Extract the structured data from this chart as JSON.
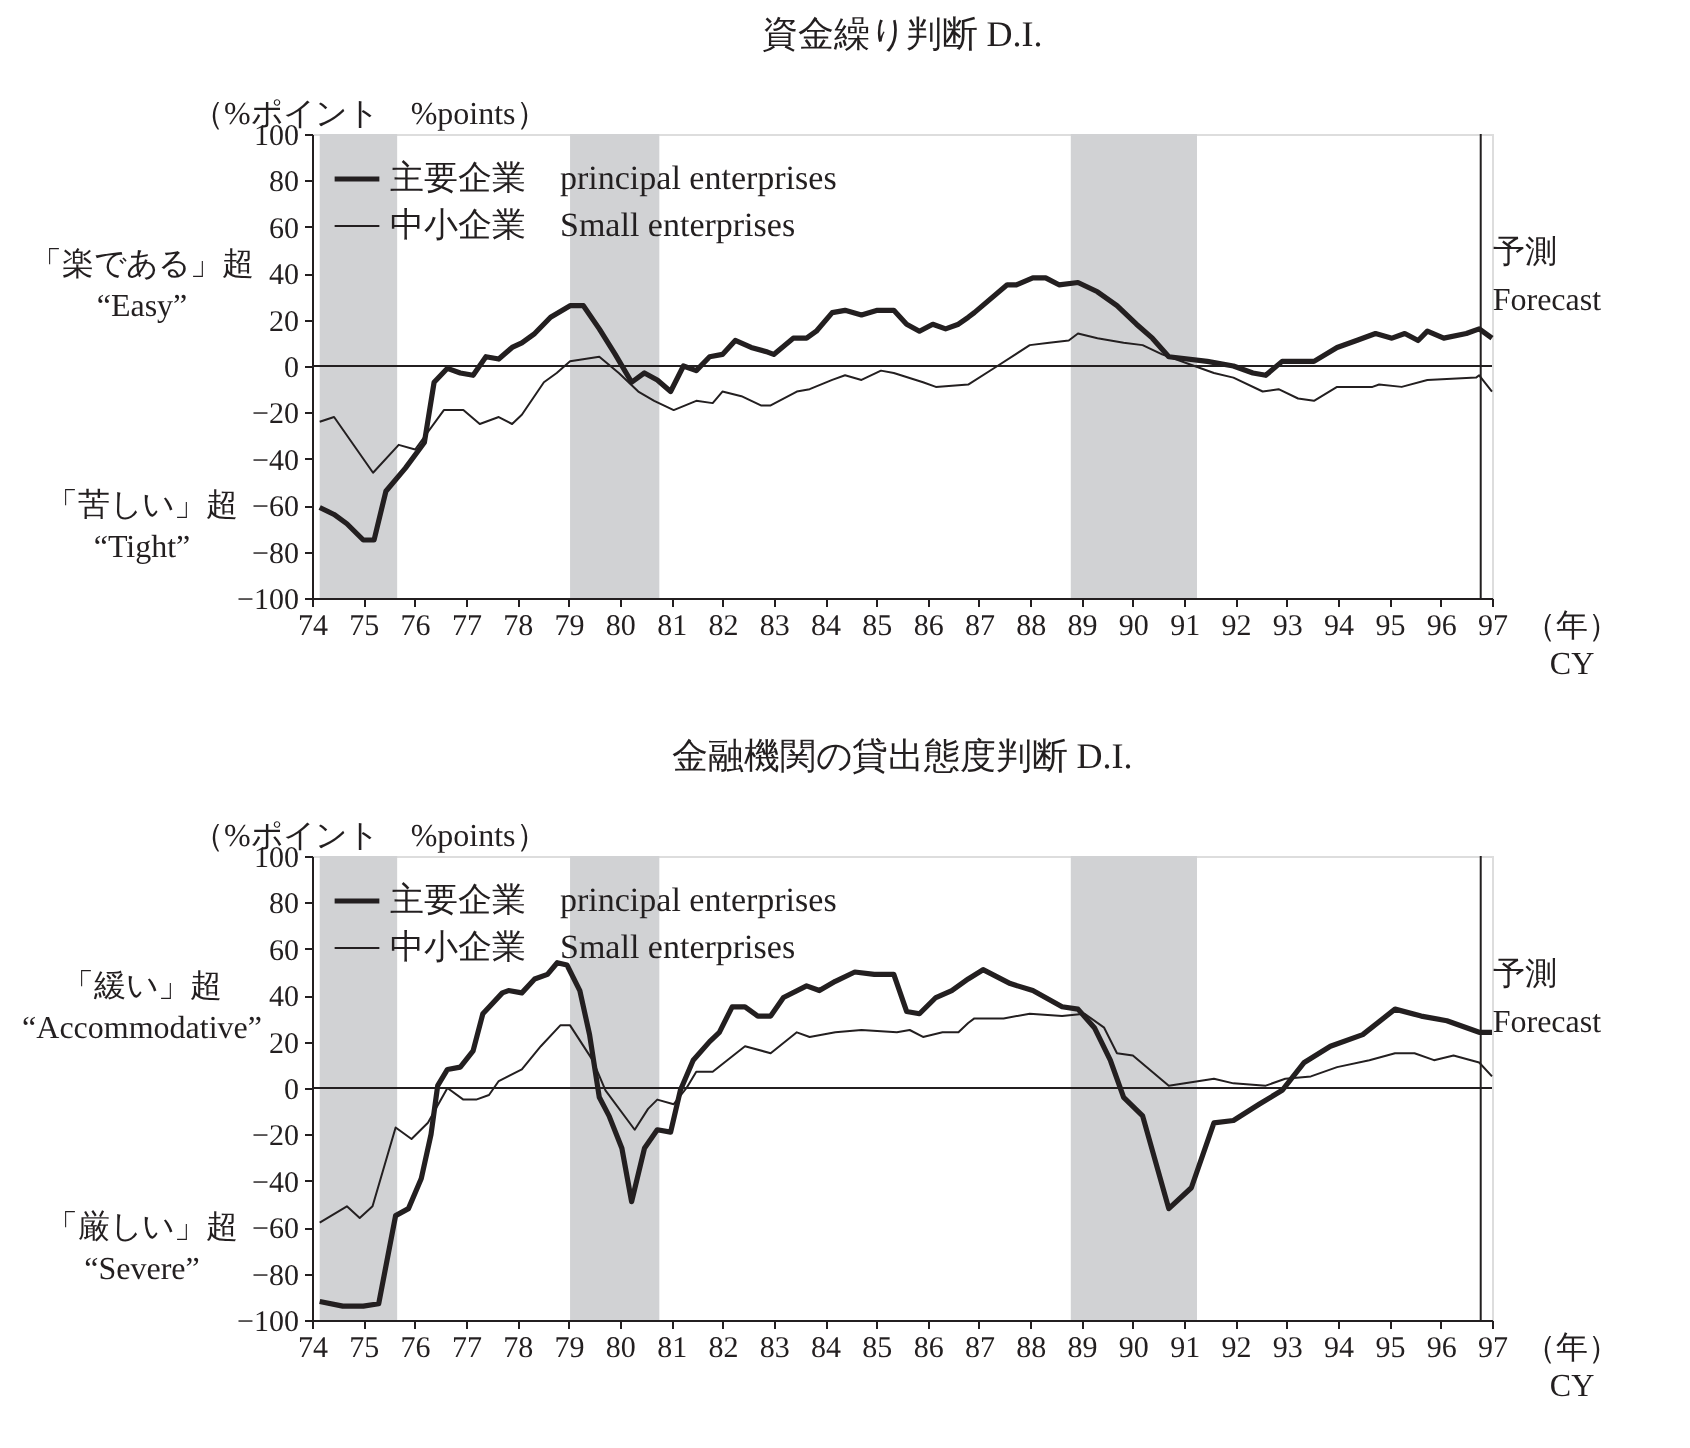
{
  "chart_data": [
    {
      "type": "line",
      "title": "資金繰り判断 D.I.",
      "ylabel": "（%ポイント　%points）",
      "xlabel": "（年） CY",
      "annotations": [
        "「楽である」超",
        "“Easy”",
        "「苦しい」超",
        "“Tight”"
      ],
      "xlim": [
        1974,
        1997
      ],
      "xticks": [
        {
          "value": 1974,
          "label": "74"
        },
        {
          "value": 1975,
          "label": "75"
        },
        {
          "value": 1976,
          "label": "76"
        },
        {
          "value": 1977,
          "label": "77"
        },
        {
          "value": 1978,
          "label": "78"
        },
        {
          "value": 1979,
          "label": "79"
        },
        {
          "value": 1980,
          "label": "80"
        },
        {
          "value": 1981,
          "label": "81"
        },
        {
          "value": 1982,
          "label": "82"
        },
        {
          "value": 1983,
          "label": "83"
        },
        {
          "value": 1984,
          "label": "84"
        },
        {
          "value": 1985,
          "label": "85"
        },
        {
          "value": 1986,
          "label": "86"
        },
        {
          "value": 1987,
          "label": "87"
        },
        {
          "value": 1988,
          "label": "88"
        },
        {
          "value": 1989,
          "label": "89"
        },
        {
          "value": 1990,
          "label": "90"
        },
        {
          "value": 1991,
          "label": "91"
        },
        {
          "value": 1992,
          "label": "92"
        },
        {
          "value": 1993,
          "label": "93"
        },
        {
          "value": 1994,
          "label": "94"
        },
        {
          "value": 1995,
          "label": "95"
        },
        {
          "value": 1996,
          "label": "96"
        },
        {
          "value": 1997,
          "label": "97"
        }
      ],
      "ylim": [
        -100,
        100
      ],
      "yticks": [
        -100,
        -80,
        -60,
        -40,
        -20,
        0,
        20,
        40,
        60,
        80,
        100
      ],
      "grid": false,
      "legend": "top left",
      "marker": "none",
      "line_style": "solid",
      "bands": [
        {
          "axis": "x",
          "from": 1974.15,
          "to": 1975.66,
          "color": "#d1d2d4"
        },
        {
          "axis": "x",
          "from": 1979.03,
          "to": 1980.77,
          "color": "#d1d2d4"
        },
        {
          "axis": "x",
          "from": 1988.79,
          "to": 1991.25,
          "color": "#d1d2d4"
        }
      ],
      "ref_lines": [
        {
          "axis": "y",
          "value": 0,
          "color": "#231f20"
        },
        {
          "axis": "x",
          "value": 1996.78,
          "label": "予測 Forecast",
          "color": "#231f20"
        }
      ],
      "series": [
        {
          "name": "主要企業　principal enterprises",
          "color": "#231f20",
          "x": [
            1974.15,
            1974.43,
            1974.68,
            1975.0,
            1975.21,
            1975.44,
            1975.82,
            1976.19,
            1976.38,
            1976.64,
            1976.89,
            1977.14,
            1977.39,
            1977.64,
            1977.9,
            1978.09,
            1978.34,
            1978.65,
            1979.03,
            1979.29,
            1979.6,
            1979.91,
            1980.23,
            1980.48,
            1980.73,
            1980.99,
            1981.24,
            1981.49,
            1981.75,
            1982.0,
            1982.25,
            1982.56,
            1982.88,
            1983.0,
            1983.38,
            1983.64,
            1983.83,
            1984.14,
            1984.39,
            1984.71,
            1985.02,
            1985.34,
            1985.59,
            1985.84,
            1986.1,
            1986.35,
            1986.6,
            1986.79,
            1986.91,
            1987.55,
            1987.73,
            1988.05,
            1988.3,
            1988.56,
            1988.93,
            1989.31,
            1989.69,
            1990.07,
            1990.38,
            1990.7,
            1991.45,
            1991.96,
            1992.34,
            1992.59,
            1992.91,
            1993.53,
            1993.98,
            1994.36,
            1994.73,
            1995.05,
            1995.3,
            1995.56,
            1995.74,
            1996.06,
            1996.5,
            1996.75,
            1997.0
          ],
          "values": [
            -61,
            -64,
            -68,
            -75,
            -75,
            -54,
            -44,
            -33,
            -7,
            -1,
            -3,
            -4,
            4,
            3,
            8,
            10,
            14,
            21,
            26,
            26,
            16,
            5,
            -7,
            -3,
            -6,
            -11,
            0,
            -2,
            4,
            5,
            11,
            8,
            6,
            5,
            12,
            12,
            15,
            23,
            24,
            22,
            24,
            24,
            18,
            15,
            18,
            16,
            18,
            21,
            23,
            35,
            35,
            38,
            38,
            35,
            36,
            32,
            26,
            18,
            12,
            4,
            2,
            0,
            -3,
            -4,
            2,
            2,
            8,
            11,
            14,
            12,
            14,
            11,
            15,
            12,
            14,
            16,
            12
          ]
        },
        {
          "name": "中小企業　Small enterprises",
          "color": "#231f20",
          "x": [
            1974.15,
            1974.43,
            1975.19,
            1975.69,
            1976.01,
            1976.57,
            1976.95,
            1977.27,
            1977.64,
            1977.9,
            1978.09,
            1978.52,
            1978.77,
            1979.03,
            1979.6,
            1979.98,
            1980.36,
            1980.67,
            1981.05,
            1981.49,
            1981.81,
            1982.0,
            1982.37,
            1982.75,
            1982.94,
            1983.45,
            1983.7,
            1984.14,
            1984.39,
            1984.71,
            1985.09,
            1985.34,
            1985.91,
            1986.16,
            1986.79,
            1987.36,
            1987.99,
            1988.37,
            1988.75,
            1988.93,
            1989.31,
            1989.82,
            1990.19,
            1990.57,
            1991.2,
            1991.58,
            1991.96,
            1992.53,
            1992.84,
            1993.22,
            1993.53,
            1993.98,
            1994.67,
            1994.8,
            1995.24,
            1995.74,
            1996.69,
            1996.75,
            1997.0
          ],
          "values": [
            -24,
            -22,
            -46,
            -34,
            -36,
            -19,
            -19,
            -25,
            -22,
            -25,
            -21,
            -7,
            -3,
            2,
            4,
            -3,
            -11,
            -15,
            -19,
            -15,
            -16,
            -11,
            -13,
            -17,
            -17,
            -11,
            -10,
            -6,
            -4,
            -6,
            -2,
            -3,
            -7,
            -9,
            -8,
            0,
            9,
            10,
            11,
            14,
            12,
            10,
            9,
            5,
            0,
            -3,
            -5,
            -11,
            -10,
            -14,
            -15,
            -9,
            -9,
            -8,
            -9,
            -6,
            -5,
            -4,
            -11
          ]
        }
      ]
    },
    {
      "type": "line",
      "title": "金融機関の貸出態度判断 D.I.",
      "ylabel": "（%ポイント　%points）",
      "xlabel": "（年） CY",
      "annotations": [
        "「緩い」超",
        "“Accommodative”",
        "「厳しい」超",
        "“Severe”"
      ],
      "xlim": [
        1974,
        1997
      ],
      "xticks": [
        {
          "value": 1974,
          "label": "74"
        },
        {
          "value": 1975,
          "label": "75"
        },
        {
          "value": 1976,
          "label": "76"
        },
        {
          "value": 1977,
          "label": "77"
        },
        {
          "value": 1978,
          "label": "78"
        },
        {
          "value": 1979,
          "label": "79"
        },
        {
          "value": 1980,
          "label": "80"
        },
        {
          "value": 1981,
          "label": "81"
        },
        {
          "value": 1982,
          "label": "82"
        },
        {
          "value": 1983,
          "label": "83"
        },
        {
          "value": 1984,
          "label": "84"
        },
        {
          "value": 1985,
          "label": "85"
        },
        {
          "value": 1986,
          "label": "86"
        },
        {
          "value": 1987,
          "label": "87"
        },
        {
          "value": 1988,
          "label": "88"
        },
        {
          "value": 1989,
          "label": "89"
        },
        {
          "value": 1990,
          "label": "90"
        },
        {
          "value": 1991,
          "label": "91"
        },
        {
          "value": 1992,
          "label": "92"
        },
        {
          "value": 1993,
          "label": "93"
        },
        {
          "value": 1994,
          "label": "94"
        },
        {
          "value": 1995,
          "label": "95"
        },
        {
          "value": 1996,
          "label": "96"
        },
        {
          "value": 1997,
          "label": "97"
        }
      ],
      "ylim": [
        -100,
        100
      ],
      "yticks": [
        -100,
        -80,
        -60,
        -40,
        -20,
        0,
        20,
        40,
        60,
        80,
        100
      ],
      "grid": false,
      "legend": "top left",
      "marker": "none",
      "line_style": "solid",
      "bands": [
        {
          "axis": "x",
          "from": 1974.15,
          "to": 1975.66,
          "color": "#d1d2d4"
        },
        {
          "axis": "x",
          "from": 1979.03,
          "to": 1980.77,
          "color": "#d1d2d4"
        },
        {
          "axis": "x",
          "from": 1988.79,
          "to": 1991.25,
          "color": "#d1d2d4"
        }
      ],
      "ref_lines": [
        {
          "axis": "y",
          "value": 0,
          "color": "#231f20"
        },
        {
          "axis": "x",
          "value": 1996.78,
          "label": "予測 Forecast",
          "color": "#231f20"
        }
      ],
      "series": [
        {
          "name": "主要企業　principal enterprises",
          "color": "#231f20",
          "x": [
            1974.15,
            1974.6,
            1975.0,
            1975.3,
            1975.63,
            1975.88,
            1976.13,
            1976.32,
            1976.45,
            1976.64,
            1976.89,
            1977.14,
            1977.33,
            1977.71,
            1977.83,
            1978.09,
            1978.34,
            1978.59,
            1978.78,
            1978.97,
            1979.22,
            1979.41,
            1979.6,
            1979.79,
            1980.04,
            1980.23,
            1980.48,
            1980.73,
            1980.99,
            1981.18,
            1981.43,
            1981.75,
            1981.94,
            1982.19,
            1982.44,
            1982.69,
            1982.94,
            1983.19,
            1983.64,
            1983.89,
            1984.2,
            1984.58,
            1984.96,
            1985.34,
            1985.59,
            1985.84,
            1986.16,
            1986.47,
            1986.79,
            1987.08,
            1987.61,
            1988.05,
            1988.62,
            1988.93,
            1989.25,
            1989.56,
            1989.82,
            1990.19,
            1990.7,
            1991.14,
            1991.58,
            1991.96,
            1992.46,
            1992.91,
            1993.34,
            1993.85,
            1994.48,
            1995.11,
            1995.62,
            1996.12,
            1996.75,
            1997.0
          ],
          "values": [
            -92,
            -94,
            -94,
            -93,
            -55,
            -52,
            -39,
            -20,
            1,
            8,
            9,
            16,
            32,
            41,
            42,
            41,
            47,
            49,
            54,
            53,
            42,
            23,
            -4,
            -12,
            -26,
            -49,
            -26,
            -18,
            -19,
            -1,
            12,
            20,
            24,
            35,
            35,
            31,
            31,
            39,
            44,
            42,
            46,
            50,
            49,
            49,
            33,
            32,
            39,
            42,
            47,
            51,
            45,
            42,
            35,
            34,
            26,
            12,
            -4,
            -12,
            -52,
            -43,
            -15,
            -14,
            -7,
            -1,
            11,
            18,
            23,
            34,
            31,
            29,
            24,
            24
          ]
        },
        {
          "name": "中小企業　Small enterprises",
          "color": "#231f20",
          "x": [
            1974.15,
            1974.68,
            1974.93,
            1975.18,
            1975.63,
            1975.94,
            1976.26,
            1976.64,
            1976.95,
            1977.2,
            1977.45,
            1977.64,
            1978.09,
            1978.46,
            1978.84,
            1979.03,
            1979.47,
            1979.72,
            1980.29,
            1980.55,
            1980.73,
            1981.05,
            1981.3,
            1981.49,
            1981.81,
            1982.44,
            1982.94,
            1983.45,
            1983.7,
            1984.2,
            1984.71,
            1985.4,
            1985.65,
            1985.91,
            1986.29,
            1986.6,
            1986.79,
            1986.91,
            1987.48,
            1987.99,
            1988.62,
            1989.06,
            1989.44,
            1989.69,
            1990.0,
            1990.7,
            1991.58,
            1991.96,
            1992.59,
            1992.97,
            1993.47,
            1993.98,
            1994.61,
            1995.11,
            1995.49,
            1995.87,
            1996.25,
            1996.75,
            1997.0
          ],
          "values": [
            -58,
            -51,
            -56,
            -51,
            -17,
            -22,
            -15,
            0,
            -5,
            -5,
            -3,
            3,
            8,
            18,
            27,
            27,
            12,
            -1,
            -18,
            -9,
            -5,
            -7,
            0,
            7,
            7,
            18,
            15,
            24,
            22,
            24,
            25,
            24,
            25,
            22,
            24,
            24,
            28,
            30,
            30,
            32,
            31,
            32,
            26,
            15,
            14,
            1,
            4,
            2,
            1,
            4,
            5,
            9,
            12,
            15,
            15,
            12,
            14,
            11,
            5
          ]
        }
      ]
    }
  ]
}
